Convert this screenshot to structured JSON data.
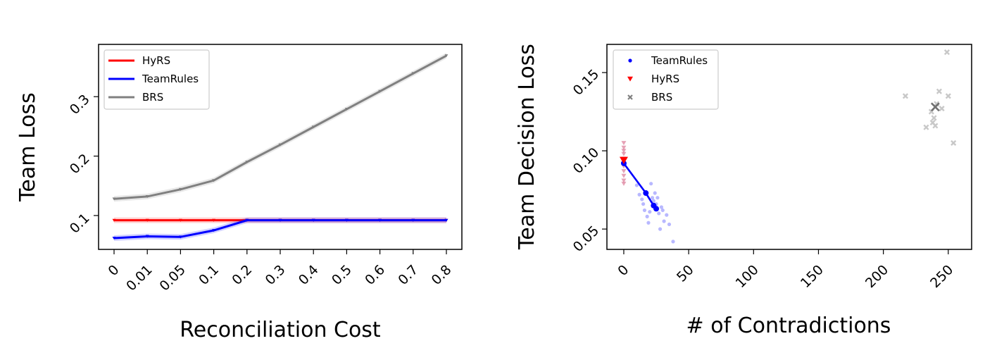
{
  "chart_data": [
    {
      "type": "line",
      "xlabel": "Reconciliation Cost",
      "ylabel": "Team Loss",
      "categories": [
        "0",
        "0.01",
        "0.05",
        "0.1",
        "0.2",
        "0.3",
        "0.4",
        "0.5",
        "0.6",
        "0.7",
        "0.8"
      ],
      "yticks": [
        "0.1",
        "0.2",
        "0.3"
      ],
      "ylim": [
        0.043,
        0.388
      ],
      "legend_position": "top-left",
      "series": [
        {
          "name": "HyRS",
          "color": "#ff0000",
          "values": [
            0.092,
            0.092,
            0.092,
            0.092,
            0.092,
            0.092,
            0.092,
            0.092,
            0.092,
            0.092,
            0.092
          ]
        },
        {
          "name": "TeamRules",
          "color": "#0000ff",
          "values": [
            0.062,
            0.065,
            0.064,
            0.075,
            0.092,
            0.092,
            0.092,
            0.092,
            0.092,
            0.092,
            0.092
          ]
        },
        {
          "name": "BRS",
          "color": "#808080",
          "values": [
            0.128,
            0.132,
            0.144,
            0.159,
            0.19,
            0.219,
            0.249,
            0.279,
            0.309,
            0.339,
            0.369
          ]
        }
      ]
    },
    {
      "type": "scatter",
      "xlabel": "# of Contradictions",
      "ylabel": "Team Decision Loss",
      "xticks": [
        "0",
        "50",
        "100",
        "150",
        "200",
        "250"
      ],
      "yticks": [
        "0.05",
        "0.10",
        "0.15"
      ],
      "xlim": [
        -13,
        268
      ],
      "ylim": [
        0.037,
        0.168
      ],
      "legend_position": "top-left",
      "series": [
        {
          "name": "TeamRules",
          "color": "#0000ff",
          "marker": "dot",
          "mean_path": [
            [
              0,
              0.092
            ],
            [
              17,
              0.073
            ],
            [
              23,
              0.065
            ],
            [
              25,
              0.063
            ]
          ],
          "points": [
            [
              10,
              0.078
            ],
            [
              12,
              0.072
            ],
            [
              15,
              0.066
            ],
            [
              16,
              0.062
            ],
            [
              18,
              0.058
            ],
            [
              19,
              0.054
            ],
            [
              20,
              0.061
            ],
            [
              21,
              0.079
            ],
            [
              22,
              0.07
            ],
            [
              23,
              0.068
            ],
            [
              25,
              0.066
            ],
            [
              26,
              0.07
            ],
            [
              27,
              0.06
            ],
            [
              28,
              0.05
            ],
            [
              29,
              0.064
            ],
            [
              30,
              0.062
            ],
            [
              31,
              0.055
            ],
            [
              33,
              0.059
            ],
            [
              35,
              0.053
            ],
            [
              38,
              0.042
            ],
            [
              24,
              0.073
            ],
            [
              14,
              0.069
            ]
          ]
        },
        {
          "name": "HyRS",
          "color": "#ff0000",
          "marker": "triangle-down",
          "mean": [
            0,
            0.094
          ],
          "points": [
            [
              0,
              0.105
            ],
            [
              0,
              0.102
            ],
            [
              0,
              0.1
            ],
            [
              0,
              0.098
            ],
            [
              0,
              0.095
            ],
            [
              0,
              0.093
            ],
            [
              0,
              0.09
            ],
            [
              0,
              0.087
            ],
            [
              0,
              0.084
            ],
            [
              0,
              0.081
            ],
            [
              0,
              0.079
            ]
          ]
        },
        {
          "name": "BRS",
          "color": "#808080",
          "marker": "x",
          "mean": [
            240,
            0.128
          ],
          "points": [
            [
              217,
              0.135
            ],
            [
              233,
              0.115
            ],
            [
              237,
              0.125
            ],
            [
              238,
              0.118
            ],
            [
              239,
              0.121
            ],
            [
              240,
              0.116
            ],
            [
              241,
              0.13
            ],
            [
              243,
              0.138
            ],
            [
              245,
              0.127
            ],
            [
              249,
              0.163
            ],
            [
              250,
              0.135
            ],
            [
              254,
              0.105
            ]
          ]
        }
      ]
    }
  ]
}
